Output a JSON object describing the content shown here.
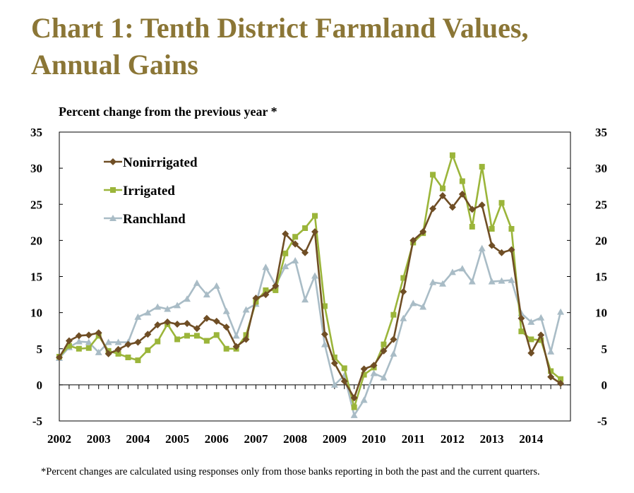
{
  "title_line1": "Chart 1: Tenth District Farmland Values,",
  "title_line2": "Annual Gains",
  "footnote": "*Percent changes are calculated using responses only from those banks reporting in both the past and the current quarters.",
  "chart_data": {
    "type": "line",
    "title": "Chart 1: Tenth District Farmland Values, Annual Gains",
    "ylabel": "Percent change from the previous year *",
    "xlabel": "",
    "ylim": [
      -5,
      35
    ],
    "y_ticks": [
      -5,
      0,
      5,
      10,
      15,
      20,
      25,
      30,
      35
    ],
    "x_ticks": [
      "2002",
      "2003",
      "2004",
      "2005",
      "2006",
      "2007",
      "2008",
      "2009",
      "2010",
      "2011",
      "2012",
      "2013",
      "2014"
    ],
    "x_start": "2002Q1",
    "frequency": "quarterly",
    "legend_position": "top-left",
    "grid": false,
    "series": [
      {
        "name": "Nonirrigated",
        "color": "#6f4e25",
        "marker": "diamond",
        "values": [
          3.8,
          6.1,
          6.8,
          6.9,
          7.2,
          4.3,
          4.9,
          5.6,
          5.9,
          7.0,
          8.3,
          8.7,
          8.4,
          8.5,
          7.8,
          9.2,
          8.8,
          8.0,
          5.3,
          6.3,
          12.0,
          12.5,
          13.7,
          20.9,
          19.5,
          18.3,
          21.2,
          7.0,
          3.0,
          0.5,
          -1.8,
          2.2,
          2.7,
          4.7,
          6.3,
          12.9,
          20.0,
          21.2,
          24.4,
          26.2,
          24.6,
          26.4,
          24.3,
          24.9,
          19.3,
          18.3,
          18.7,
          9.2,
          4.4,
          6.9,
          1.1,
          0.2
        ]
      },
      {
        "name": "Irrigated",
        "color": "#9bb53a",
        "marker": "square",
        "values": [
          3.9,
          5.4,
          5.0,
          5.1,
          6.8,
          4.7,
          4.3,
          3.8,
          3.4,
          4.8,
          6.0,
          8.4,
          6.3,
          6.8,
          6.8,
          6.1,
          6.9,
          5.0,
          5.0,
          6.9,
          11.5,
          13.1,
          13.1,
          18.2,
          20.5,
          21.7,
          23.4,
          10.9,
          3.8,
          2.3,
          -3.1,
          1.4,
          2.4,
          5.6,
          9.7,
          14.8,
          19.7,
          21.0,
          29.1,
          27.2,
          31.8,
          28.2,
          21.9,
          30.2,
          21.6,
          25.2,
          21.6,
          7.4,
          6.3,
          6.2,
          1.9,
          0.8
        ]
      },
      {
        "name": "Ranchland",
        "color": "#a9bcc6",
        "marker": "triangle",
        "values": [
          3.7,
          5.2,
          6.0,
          5.9,
          4.5,
          5.9,
          5.9,
          5.9,
          9.4,
          10.0,
          10.8,
          10.5,
          11.0,
          11.9,
          14.1,
          12.5,
          13.7,
          10.2,
          6.8,
          10.4,
          11.2,
          16.3,
          13.8,
          16.4,
          17.2,
          11.8,
          15.1,
          5.6,
          0.0,
          1.3,
          -4.2,
          -2.1,
          1.6,
          1.0,
          4.3,
          9.2,
          11.3,
          10.8,
          14.2,
          14.0,
          15.6,
          16.1,
          14.3,
          18.9,
          14.3,
          14.4,
          14.5,
          9.9,
          8.7,
          9.3,
          4.6,
          10.1
        ]
      }
    ]
  }
}
